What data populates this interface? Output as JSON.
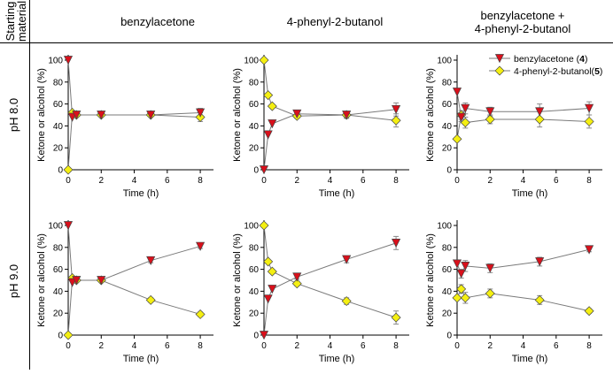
{
  "headers": {
    "corner_line1": "Starting",
    "corner_line2": "material",
    "col1": "benzylacetone",
    "col2": "4-phenyl-2-butanol",
    "col3_line1": "benzylacetone  +",
    "col3_line2": "4-phenyl-2-butanol",
    "row1": "pH 8.0",
    "row2": "pH 9.0"
  },
  "legend": {
    "ketone_prefix": "benzylacetone (",
    "ketone_num": "4",
    "ketone_suffix": ")",
    "alcohol_prefix": "4-phenyl-2-butanol(",
    "alcohol_num": "5",
    "alcohol_suffix": ")"
  },
  "colors": {
    "ketone": "#d9101b",
    "alcohol": "#f4ef12",
    "line": "#7a7a7a",
    "axis": "#000000",
    "error": "#8a8a8a"
  },
  "chart_data": [
    {
      "type": "line",
      "panel": "pH 8.0 / benzylacetone",
      "xlabel": "Time (h)",
      "ylabel": "Ketone or alcohol (%)",
      "xlim": [
        0,
        8.8
      ],
      "ylim": [
        0,
        100
      ],
      "xticks": [
        0,
        2,
        4,
        6,
        8
      ],
      "yticks": [
        0,
        20,
        40,
        60,
        80,
        100
      ],
      "series": [
        {
          "name": "benzylacetone (4)",
          "x": [
            0,
            0.25,
            0.5,
            2,
            5,
            8
          ],
          "values": [
            100,
            48,
            50,
            50,
            50,
            52
          ],
          "errors": [
            0,
            0,
            0,
            0,
            0,
            4
          ]
        },
        {
          "name": "4-phenyl-2-butanol(5)",
          "x": [
            0,
            0.25,
            0.5,
            2,
            5,
            8
          ],
          "values": [
            0,
            52,
            50,
            50,
            50,
            48
          ],
          "errors": [
            0,
            0,
            0,
            0,
            0,
            4
          ]
        }
      ]
    },
    {
      "type": "line",
      "panel": "pH 8.0 / 4-phenyl-2-butanol",
      "xlabel": "Time (h)",
      "ylabel": "Ketone or alcohol (%)",
      "xlim": [
        0,
        8.8
      ],
      "ylim": [
        0,
        100
      ],
      "xticks": [
        0,
        2,
        4,
        6,
        8
      ],
      "yticks": [
        0,
        20,
        40,
        60,
        80,
        100
      ],
      "series": [
        {
          "name": "benzylacetone (4)",
          "x": [
            0,
            0.25,
            0.5,
            2,
            5,
            8
          ],
          "values": [
            0,
            32,
            42,
            51,
            50,
            55
          ],
          "errors": [
            0,
            0,
            0,
            2,
            3,
            6
          ]
        },
        {
          "name": "4-phenyl-2-butanol(5)",
          "x": [
            0,
            0.25,
            0.5,
            2,
            5,
            8
          ],
          "values": [
            100,
            68,
            58,
            49,
            50,
            45
          ],
          "errors": [
            0,
            0,
            0,
            2,
            3,
            6
          ]
        }
      ]
    },
    {
      "type": "line",
      "panel": "pH 8.0 / benzylacetone + 4-phenyl-2-butanol",
      "xlabel": "Time (h)",
      "ylabel": "Ketone or alcohol (%)",
      "xlim": [
        0,
        8.8
      ],
      "ylim": [
        0,
        100
      ],
      "xticks": [
        0,
        2,
        4,
        6,
        8
      ],
      "yticks": [
        0,
        20,
        40,
        60,
        80,
        100
      ],
      "series": [
        {
          "name": "benzylacetone (4)",
          "x": [
            0,
            0.25,
            0.5,
            2,
            5,
            8
          ],
          "values": [
            71,
            48,
            56,
            53,
            53,
            56
          ],
          "errors": [
            0,
            4,
            5,
            4,
            7,
            6
          ]
        },
        {
          "name": "4-phenyl-2-butanol(5)",
          "x": [
            0,
            0.25,
            0.5,
            2,
            5,
            8
          ],
          "values": [
            28,
            50,
            43,
            46,
            46,
            44
          ],
          "errors": [
            0,
            4,
            5,
            4,
            7,
            6
          ]
        }
      ]
    },
    {
      "type": "line",
      "panel": "pH 9.0 / benzylacetone",
      "xlabel": "Time (h)",
      "ylabel": "Ketone or alcohol (%)",
      "xlim": [
        0,
        8.8
      ],
      "ylim": [
        0,
        100
      ],
      "xticks": [
        0,
        2,
        4,
        6,
        8
      ],
      "yticks": [
        0,
        20,
        40,
        60,
        80,
        100
      ],
      "series": [
        {
          "name": "benzylacetone (4)",
          "x": [
            0,
            0.25,
            0.5,
            2,
            5,
            8
          ],
          "values": [
            100,
            48,
            50,
            50,
            68,
            81
          ],
          "errors": [
            0,
            0,
            0,
            0,
            2,
            2
          ]
        },
        {
          "name": "4-phenyl-2-butanol(5)",
          "x": [
            0,
            0.25,
            0.5,
            2,
            5,
            8
          ],
          "values": [
            0,
            52,
            50,
            50,
            32,
            19
          ],
          "errors": [
            0,
            0,
            0,
            0,
            2,
            2
          ]
        }
      ]
    },
    {
      "type": "line",
      "panel": "pH 9.0 / 4-phenyl-2-butanol",
      "xlabel": "Time (h)",
      "ylabel": "Ketone or alcohol (%)",
      "xlim": [
        0,
        8.8
      ],
      "ylim": [
        0,
        100
      ],
      "xticks": [
        0,
        2,
        4,
        6,
        8
      ],
      "yticks": [
        0,
        20,
        40,
        60,
        80,
        100
      ],
      "series": [
        {
          "name": "benzylacetone (4)",
          "x": [
            0,
            0.25,
            0.5,
            2,
            5,
            8
          ],
          "values": [
            0,
            33,
            42,
            53,
            69,
            84
          ],
          "errors": [
            0,
            0,
            0,
            2,
            3,
            6
          ]
        },
        {
          "name": "4-phenyl-2-butanol(5)",
          "x": [
            0,
            0.25,
            0.5,
            2,
            5,
            8
          ],
          "values": [
            100,
            67,
            58,
            47,
            31,
            16
          ],
          "errors": [
            0,
            0,
            0,
            2,
            3,
            6
          ]
        }
      ]
    },
    {
      "type": "line",
      "panel": "pH 9.0 / benzylacetone + 4-phenyl-2-butanol",
      "xlabel": "Time (h)",
      "ylabel": "Ketone or alcohol (%)",
      "xlim": [
        0,
        8.8
      ],
      "ylim": [
        0,
        100
      ],
      "xticks": [
        0,
        2,
        4,
        6,
        8
      ],
      "yticks": [
        0,
        20,
        40,
        60,
        80,
        100
      ],
      "series": [
        {
          "name": "benzylacetone (4)",
          "x": [
            0,
            0.25,
            0.5,
            2,
            5,
            8
          ],
          "values": [
            65,
            56,
            63,
            61,
            67,
            78
          ],
          "errors": [
            0,
            4,
            5,
            4,
            4,
            2
          ]
        },
        {
          "name": "4-phenyl-2-butanol(5)",
          "x": [
            0,
            0.25,
            0.5,
            2,
            5,
            8
          ],
          "values": [
            34,
            42,
            34,
            38,
            32,
            22
          ],
          "errors": [
            0,
            4,
            5,
            4,
            4,
            2
          ]
        }
      ]
    }
  ]
}
